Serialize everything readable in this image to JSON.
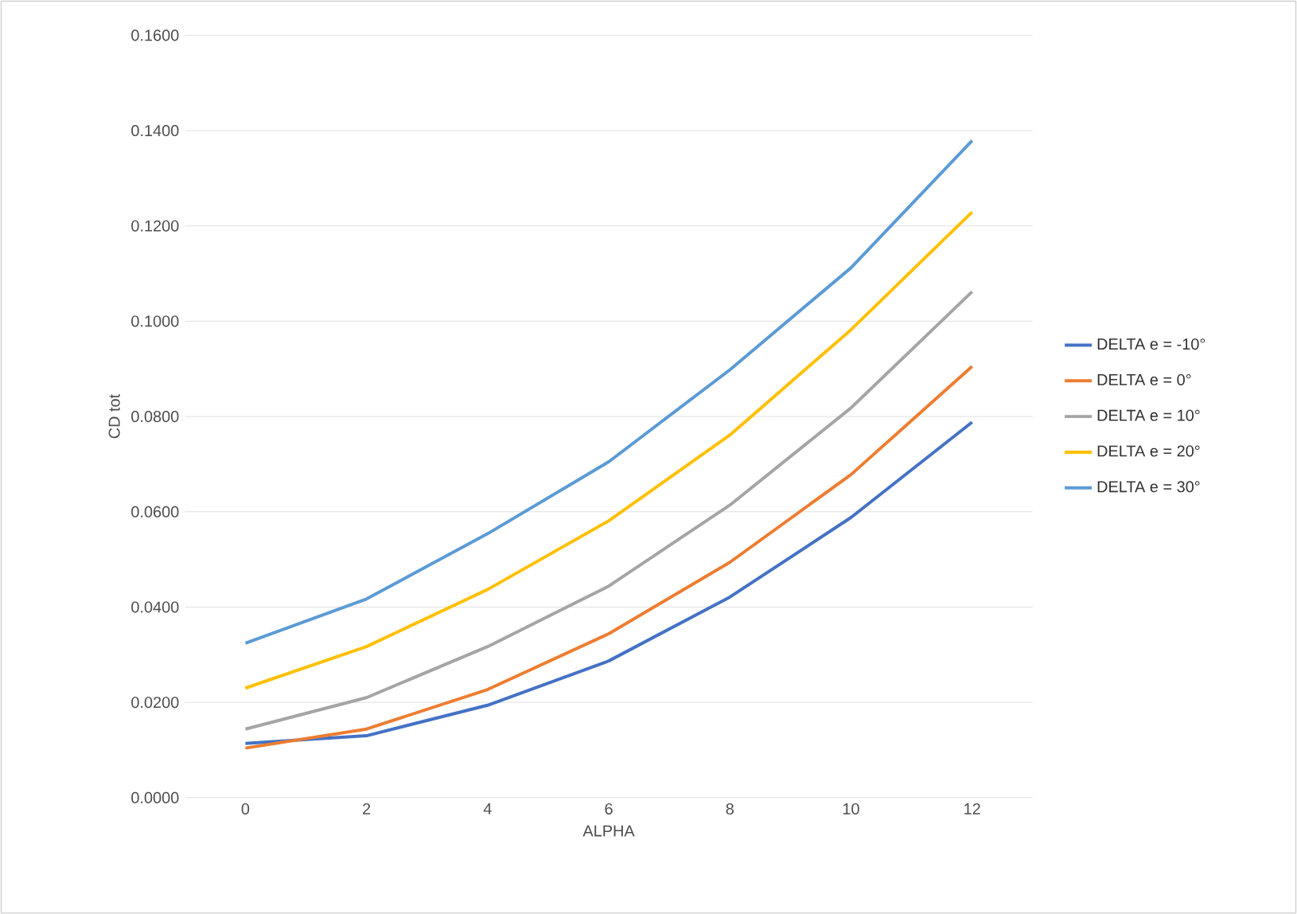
{
  "chart_data": {
    "type": "line",
    "xlabel": "ALPHA",
    "ylabel": "CD tot",
    "categories": [
      "0",
      "2",
      "4",
      "6",
      "8",
      "10",
      "12"
    ],
    "ylim": [
      0,
      0.16
    ],
    "yticks": [
      {
        "value": 0,
        "label": "0.0000"
      },
      {
        "value": 0.02,
        "label": "0.0200"
      },
      {
        "value": 0.04,
        "label": "0.0400"
      },
      {
        "value": 0.06,
        "label": "0.0600"
      },
      {
        "value": 0.08,
        "label": "0.0800"
      },
      {
        "value": 0.1,
        "label": "0.1000"
      },
      {
        "value": 0.12,
        "label": "0.1200"
      },
      {
        "value": 0.14,
        "label": "0.1400"
      },
      {
        "value": 0.16,
        "label": "0.1600"
      }
    ],
    "grid": "y",
    "legend": "right",
    "marker": "none",
    "line_style": "solid",
    "series": [
      {
        "name": "DELTA e = -10°",
        "color": "#4472c4",
        "values": [
          0.0114,
          0.013,
          0.0194,
          0.0287,
          0.0421,
          0.0588,
          0.0788
        ]
      },
      {
        "name": "DELTA e = 0°",
        "color": "#ed7d31",
        "values": [
          0.0104,
          0.0144,
          0.0227,
          0.0344,
          0.0494,
          0.0678,
          0.0905
        ]
      },
      {
        "name": "DELTA e = 10°",
        "color": "#a5a5a5",
        "values": [
          0.0144,
          0.021,
          0.0317,
          0.0444,
          0.0614,
          0.0818,
          0.1062
        ]
      },
      {
        "name": "DELTA e = 20°",
        "color": "#ffc000",
        "values": [
          0.023,
          0.0317,
          0.0437,
          0.0581,
          0.0761,
          0.0982,
          0.1229
        ]
      },
      {
        "name": "DELTA e = 30°",
        "color": "#5b9bd5",
        "values": [
          0.0324,
          0.0417,
          0.0554,
          0.0705,
          0.0898,
          0.1112,
          0.1379
        ]
      }
    ]
  }
}
